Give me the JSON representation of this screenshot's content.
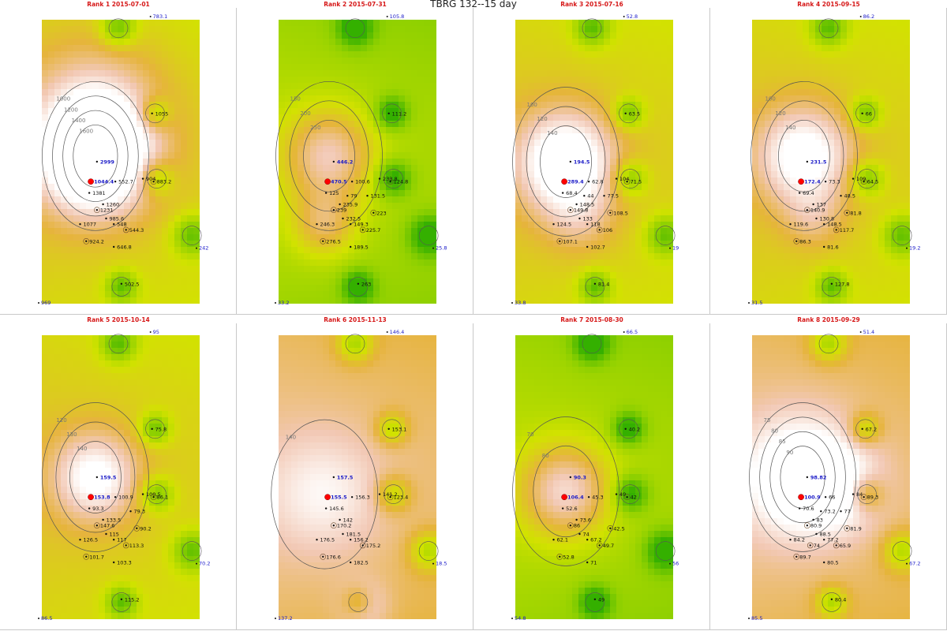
{
  "figure": {
    "title": "TBRG 132--15 day"
  },
  "colors": {
    "low": "#34b000",
    "mid_low": "#8ed000",
    "mid": "#d2e200",
    "high": "#e6b43c",
    "very_high": "#f2c8b4",
    "peak": "#ffffff",
    "contour": "#555555",
    "label_blue": "#1a1ac8",
    "label_black": "#111111",
    "title_red": "#d61818",
    "target_red": "#ff0000"
  },
  "chart_data": [
    {
      "type": "heatmap",
      "title": "Rank 1 2015-07-01",
      "corner_labels": {
        "top": "783.1",
        "right": "242",
        "bottom": "969"
      },
      "contour_levels": [
        "1000",
        "1200",
        "1400",
        "1600"
      ],
      "target_value": "1044.4",
      "stations": [
        "2999",
        "1044.4",
        "552.7",
        "904",
        "883.2",
        "1055",
        "1381",
        "1231",
        "1077",
        "1260",
        "924.2",
        "985.6",
        "548",
        "544.3",
        "646.8",
        "502.5"
      ],
      "background_level": "mid"
    },
    {
      "type": "heatmap",
      "title": "Rank 2 2015-07-31",
      "corner_labels": {
        "top": "105.8",
        "right": "25.8",
        "bottom": "33.2"
      },
      "contour_levels": [
        "150",
        "200",
        "250"
      ],
      "target_value": "470.5",
      "stations": [
        "446.2",
        "470.5",
        "100.6",
        "233.8",
        "124.8",
        "111.2",
        "125",
        "239",
        "246.3",
        "235.9",
        "276.5",
        "232.5",
        "149.3",
        "225.7",
        "189.5",
        "263",
        "223",
        "131.5",
        "79"
      ],
      "background_level": "mid_low"
    },
    {
      "type": "heatmap",
      "title": "Rank 3 2015-07-16",
      "corner_labels": {
        "top": "52.8",
        "right": "19",
        "bottom": "33.8"
      },
      "contour_levels": [
        "100",
        "120",
        "140"
      ],
      "target_value": "289.4",
      "stations": [
        "194.5",
        "289.4",
        "62.8",
        "104",
        "71.5",
        "63.5",
        "68.4",
        "149.8",
        "124.5",
        "148.5",
        "107.1",
        "133",
        "118",
        "106",
        "102.7",
        "81.4",
        "108.5",
        "77.5",
        "44"
      ],
      "background_level": "mid"
    },
    {
      "type": "heatmap",
      "title": "Rank 4 2015-09-15",
      "corner_labels": {
        "top": "86.2",
        "right": "19.2",
        "bottom": "31.5"
      },
      "contour_levels": [
        "100",
        "120",
        "140"
      ],
      "target_value": "172.4",
      "stations": [
        "231.5",
        "172.4",
        "73.3",
        "109",
        "64.5",
        "66",
        "69.4",
        "140.9",
        "119.6",
        "137",
        "86.3",
        "130.8",
        "148.5",
        "117.7",
        "81.6",
        "127.8",
        "81.8",
        "48.5"
      ],
      "background_level": "mid"
    },
    {
      "type": "heatmap",
      "title": "Rank 5 2015-10-14",
      "corner_labels": {
        "top": "95",
        "right": "70.2",
        "bottom": "86.5"
      },
      "contour_levels": [
        "120",
        "130",
        "140"
      ],
      "target_value": "153.8",
      "stations": [
        "159.5",
        "153.8",
        "100.9",
        "100.5",
        "86.1",
        "75.8",
        "93.3",
        "147.6",
        "126.5",
        "133.5",
        "101.7",
        "115",
        "117",
        "113.3",
        "103.3",
        "115.2",
        "90.2",
        "79.3"
      ],
      "background_level": "mid"
    },
    {
      "type": "heatmap",
      "title": "Rank 6 2015-11-13",
      "corner_labels": {
        "top": "146.4",
        "right": "18.5",
        "bottom": "137.2"
      },
      "contour_levels": [
        "140"
      ],
      "target_value": "155.5",
      "stations": [
        "157.5",
        "155.5",
        "156.3",
        "141.2",
        "123.4",
        "153.1",
        "145.6",
        "170.2",
        "176.5",
        "142",
        "176.6",
        "181.5",
        "156.2",
        "175.2",
        "182.5"
      ],
      "background_level": "high"
    },
    {
      "type": "heatmap",
      "title": "Rank 7 2015-08-30",
      "corner_labels": {
        "top": "66.5",
        "right": "56",
        "bottom": "54.8"
      },
      "contour_levels": [
        "70",
        "80"
      ],
      "target_value": "106.4",
      "stations": [
        "90.3",
        "106.4",
        "45.3",
        "49",
        "42",
        "40.2",
        "52.6",
        "86",
        "62.1",
        "73.6",
        "52.8",
        "74",
        "67.2",
        "49.7",
        "71",
        "49",
        "42.5"
      ],
      "background_level": "mid_low"
    },
    {
      "type": "heatmap",
      "title": "Rank 8 2015-09-29",
      "corner_labels": {
        "top": "51.4",
        "right": "67.2",
        "bottom": "85.5"
      },
      "contour_levels": [
        "75",
        "80",
        "85",
        "90"
      ],
      "target_value": "100.9",
      "stations": [
        "98.82",
        "100.9",
        "66",
        "84",
        "89.3",
        "67.2",
        "70.6",
        "80.9",
        "84.2",
        "83",
        "89.7",
        "88.5",
        "77.2",
        "65.9",
        "80.5",
        "80.4",
        "81.9",
        "77",
        "73.2",
        "74"
      ],
      "background_level": "high"
    }
  ]
}
